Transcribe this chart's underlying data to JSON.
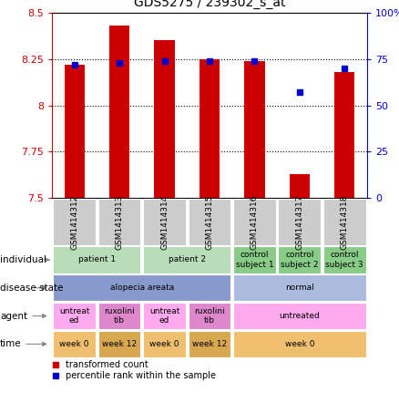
{
  "title": "GDS5275 / 239302_s_at",
  "samples": [
    "GSM1414312",
    "GSM1414313",
    "GSM1414314",
    "GSM1414315",
    "GSM1414316",
    "GSM1414317",
    "GSM1414318"
  ],
  "transformed_count": [
    8.22,
    8.43,
    8.35,
    8.25,
    8.24,
    7.63,
    8.18
  ],
  "percentile_rank": [
    72,
    73,
    74,
    74,
    74,
    57,
    70
  ],
  "ylim_left": [
    7.5,
    8.5
  ],
  "ylim_right": [
    0,
    100
  ],
  "yticks_left": [
    7.5,
    7.75,
    8.0,
    8.25,
    8.5
  ],
  "yticks_right": [
    0,
    25,
    50,
    75,
    100
  ],
  "ytick_labels_left": [
    "7.5",
    "7.75",
    "8",
    "8.25",
    "8.5"
  ],
  "ytick_labels_right": [
    "0",
    "25",
    "50",
    "75",
    "100%"
  ],
  "bar_color": "#cc0000",
  "dot_color": "#0000cc",
  "bar_bottom": 7.5,
  "annotation_rows": [
    {
      "label": "individual",
      "cells": [
        {
          "text": "patient 1",
          "span": 2,
          "color": "#b8ddb8"
        },
        {
          "text": "patient 2",
          "span": 2,
          "color": "#b8ddb8"
        },
        {
          "text": "control\nsubject 1",
          "span": 1,
          "color": "#88cc88"
        },
        {
          "text": "control\nsubject 2",
          "span": 1,
          "color": "#88cc88"
        },
        {
          "text": "control\nsubject 3",
          "span": 1,
          "color": "#88cc88"
        }
      ]
    },
    {
      "label": "disease state",
      "cells": [
        {
          "text": "alopecia areata",
          "span": 4,
          "color": "#8899cc"
        },
        {
          "text": "normal",
          "span": 3,
          "color": "#aabbdd"
        }
      ]
    },
    {
      "label": "agent",
      "cells": [
        {
          "text": "untreat\ned",
          "span": 1,
          "color": "#ffaaee"
        },
        {
          "text": "ruxolini\ntib",
          "span": 1,
          "color": "#dd88cc"
        },
        {
          "text": "untreat\ned",
          "span": 1,
          "color": "#ffaaee"
        },
        {
          "text": "ruxolini\ntib",
          "span": 1,
          "color": "#dd88cc"
        },
        {
          "text": "untreated",
          "span": 3,
          "color": "#ffaaee"
        }
      ]
    },
    {
      "label": "time",
      "cells": [
        {
          "text": "week 0",
          "span": 1,
          "color": "#f0c070"
        },
        {
          "text": "week 12",
          "span": 1,
          "color": "#d8a850"
        },
        {
          "text": "week 0",
          "span": 1,
          "color": "#f0c070"
        },
        {
          "text": "week 12",
          "span": 1,
          "color": "#d8a850"
        },
        {
          "text": "week 0",
          "span": 3,
          "color": "#f0c070"
        }
      ]
    }
  ],
  "legend": [
    {
      "color": "#cc0000",
      "label": "transformed count"
    },
    {
      "color": "#0000cc",
      "label": "percentile rank within the sample"
    }
  ],
  "sample_box_color": "#cccccc",
  "label_arrow_color": "#888888"
}
